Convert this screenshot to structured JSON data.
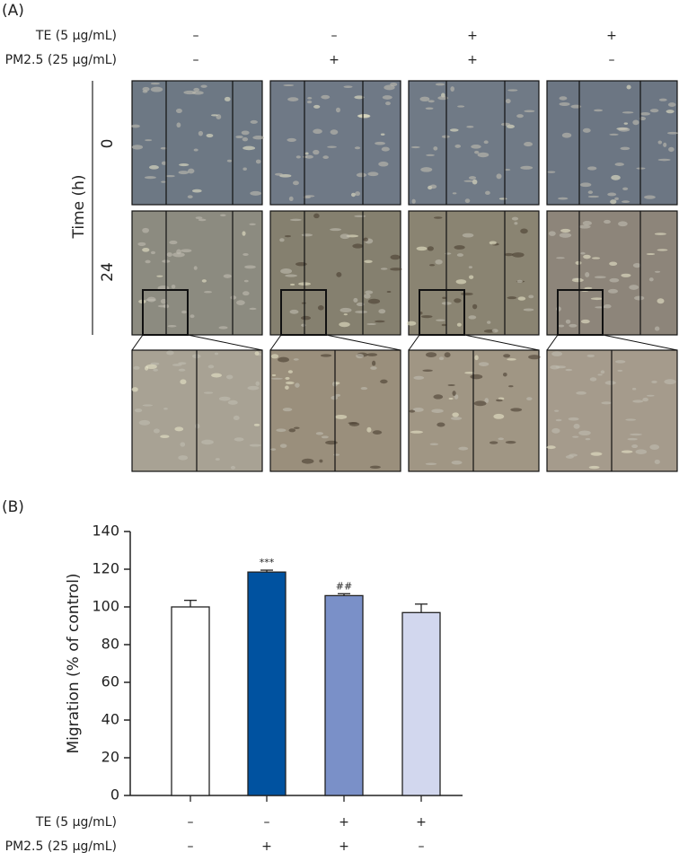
{
  "panel_a": {
    "label": "(A)",
    "treatments": [
      {
        "label": "TE (5 μg/mL)",
        "signs": [
          "–",
          "–",
          "+",
          "+"
        ]
      },
      {
        "label": "PM2.5 (25 μg/mL)",
        "signs": [
          "–",
          "+",
          "+",
          "–"
        ]
      }
    ],
    "axis_label": "Time (h)",
    "rows": [
      "0",
      "24"
    ]
  },
  "chart_data": {
    "type": "bar",
    "label": "(B)",
    "y_label": "Migration (% of control)",
    "values": [
      100,
      118.5,
      106,
      97
    ],
    "errors": [
      3.5,
      1,
      1,
      4.5
    ],
    "colors": [
      "#ffffff",
      "#0052a0",
      "#7a90c8",
      "#d2d7ee"
    ],
    "annotations": [
      null,
      "***",
      "##",
      null
    ],
    "ylim": [
      0,
      140
    ],
    "yticks": [
      0,
      20,
      40,
      60,
      80,
      100,
      120,
      140
    ],
    "treatments": [
      {
        "label": "TE (5 μg/mL)",
        "signs": [
          "–",
          "–",
          "+",
          "+"
        ]
      },
      {
        "label": "PM2.5 (25 μg/mL)",
        "signs": [
          "–",
          "+",
          "+",
          "–"
        ]
      }
    ]
  }
}
